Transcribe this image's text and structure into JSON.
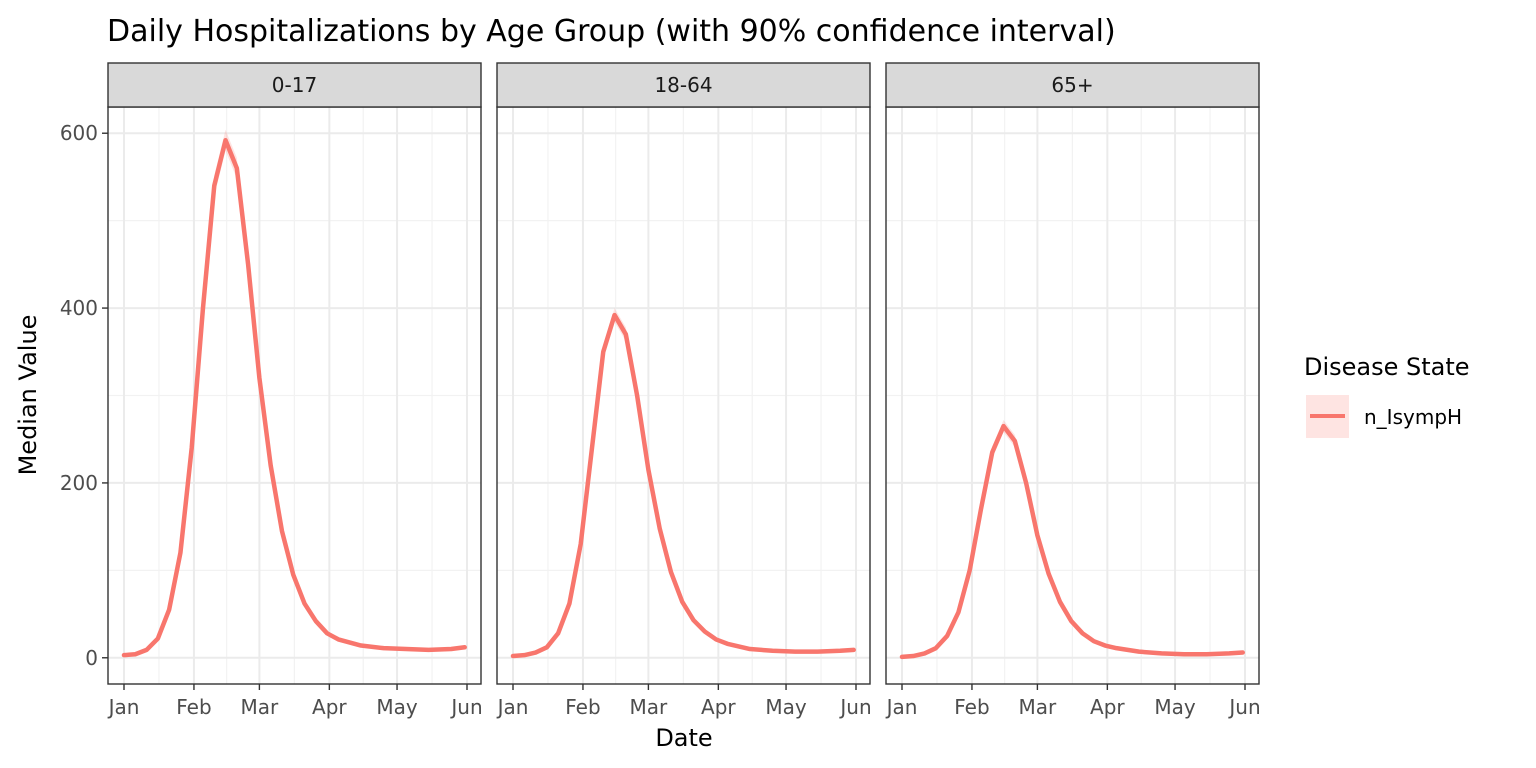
{
  "chart_data": {
    "type": "line",
    "title": "Daily Hospitalizations by Age Group (with 90% confidence interval)",
    "xlabel": "Date",
    "ylabel": "Median Value",
    "x_ticks": [
      "Jan",
      "Feb",
      "Mar",
      "Apr",
      "May",
      "Jun"
    ],
    "y_ticks": [
      0,
      200,
      400,
      600
    ],
    "ylim": [
      -30,
      630
    ],
    "xlim": [
      "2024-01-01",
      "2024-06-01"
    ],
    "grid": true,
    "legend": {
      "title": "Disease State",
      "position": "right",
      "entries": [
        {
          "name": "n_IsympH",
          "color": "#F8766D"
        }
      ]
    },
    "series_color": "#F8766D",
    "ribbon_color": "#F8766D",
    "facets": [
      {
        "label": "0-17",
        "series": [
          {
            "name": "n_IsympH",
            "x": [
              "2024-01-01",
              "2024-01-06",
              "2024-01-11",
              "2024-01-16",
              "2024-01-21",
              "2024-01-26",
              "2024-01-31",
              "2024-02-05",
              "2024-02-10",
              "2024-02-15",
              "2024-02-20",
              "2024-02-25",
              "2024-03-01",
              "2024-03-06",
              "2024-03-11",
              "2024-03-16",
              "2024-03-21",
              "2024-03-26",
              "2024-03-31",
              "2024-04-05",
              "2024-04-15",
              "2024-04-25",
              "2024-05-05",
              "2024-05-15",
              "2024-05-25",
              "2024-05-31"
            ],
            "y": [
              3,
              4,
              9,
              22,
              55,
              120,
              240,
              400,
              540,
              592,
              560,
              450,
              320,
              220,
              145,
              95,
              62,
              42,
              28,
              21,
              14,
              11,
              10,
              9,
              10,
              12
            ],
            "lower": [
              2,
              3,
              8,
              20,
              52,
              114,
              232,
              390,
              528,
              580,
              548,
              440,
              312,
              214,
              141,
              92,
              60,
              40,
              27,
              20,
              13,
              10,
              9,
              8,
              9,
              11
            ],
            "upper": [
              4,
              5,
              10,
              24,
              58,
              126,
              248,
              410,
              552,
              604,
              572,
              460,
              328,
              226,
              149,
              98,
              64,
              44,
              29,
              22,
              15,
              12,
              11,
              10,
              11,
              13
            ]
          }
        ]
      },
      {
        "label": "18-64",
        "series": [
          {
            "name": "n_IsympH",
            "x": [
              "2024-01-01",
              "2024-01-06",
              "2024-01-11",
              "2024-01-16",
              "2024-01-21",
              "2024-01-26",
              "2024-01-31",
              "2024-02-05",
              "2024-02-10",
              "2024-02-15",
              "2024-02-20",
              "2024-02-25",
              "2024-03-01",
              "2024-03-06",
              "2024-03-11",
              "2024-03-16",
              "2024-03-21",
              "2024-03-26",
              "2024-03-31",
              "2024-04-05",
              "2024-04-15",
              "2024-04-25",
              "2024-05-05",
              "2024-05-15",
              "2024-05-25",
              "2024-05-31"
            ],
            "y": [
              2,
              3,
              6,
              12,
              28,
              62,
              130,
              240,
              350,
              392,
              370,
              300,
              215,
              148,
              98,
              64,
              43,
              30,
              21,
              16,
              10,
              8,
              7,
              7,
              8,
              9
            ],
            "lower": [
              1,
              2,
              5,
              11,
              26,
              59,
              125,
              233,
              342,
              384,
              362,
              293,
              210,
              144,
              95,
              62,
              41,
              29,
              20,
              15,
              9,
              7,
              6,
              6,
              7,
              8
            ],
            "upper": [
              3,
              4,
              7,
              13,
              30,
              65,
              135,
              247,
              358,
              400,
              378,
              307,
              220,
              152,
              101,
              66,
              45,
              31,
              22,
              17,
              11,
              9,
              8,
              8,
              9,
              10
            ]
          }
        ]
      },
      {
        "label": "65+",
        "series": [
          {
            "name": "n_IsympH",
            "x": [
              "2024-01-01",
              "2024-01-06",
              "2024-01-11",
              "2024-01-16",
              "2024-01-21",
              "2024-01-26",
              "2024-01-31",
              "2024-02-05",
              "2024-02-10",
              "2024-02-15",
              "2024-02-20",
              "2024-02-25",
              "2024-03-01",
              "2024-03-06",
              "2024-03-11",
              "2024-03-16",
              "2024-03-21",
              "2024-03-26",
              "2024-03-31",
              "2024-04-05",
              "2024-04-15",
              "2024-04-25",
              "2024-05-05",
              "2024-05-15",
              "2024-05-25",
              "2024-05-31"
            ],
            "y": [
              1,
              2,
              5,
              11,
              25,
              52,
              100,
              170,
              235,
              265,
              248,
              200,
              140,
              96,
              64,
              42,
              28,
              19,
              14,
              11,
              7,
              5,
              4,
              4,
              5,
              6
            ],
            "lower": [
              0,
              1,
              4,
              10,
              23,
              49,
              96,
              164,
              228,
              258,
              241,
              194,
              136,
              93,
              62,
              40,
              27,
              18,
              13,
              10,
              6,
              4,
              3,
              3,
              4,
              5
            ],
            "upper": [
              2,
              3,
              6,
              12,
              27,
              55,
              104,
              176,
              242,
              272,
              255,
              206,
              144,
              99,
              66,
              44,
              29,
              20,
              15,
              12,
              8,
              6,
              5,
              5,
              6,
              7
            ]
          }
        ]
      }
    ]
  }
}
